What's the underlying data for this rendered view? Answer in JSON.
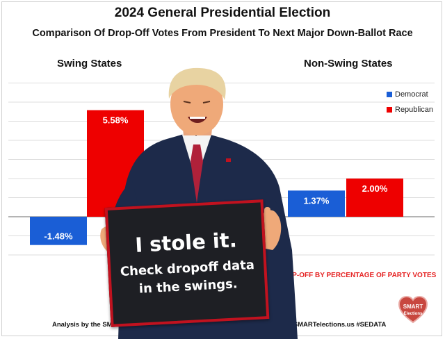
{
  "chart_data": {
    "type": "bar",
    "title": "2024 General Presidential Election",
    "subtitle": "Comparison Of Drop-Off Votes From President To Next Major Down-Ballot Race",
    "categories": [
      "Swing States",
      "Non-Swing States"
    ],
    "series": [
      {
        "name": "Democrat",
        "values": [
          -1.48,
          1.37
        ],
        "labels": [
          "-1.48%",
          "1.37%"
        ]
      },
      {
        "name": "Republican",
        "values": [
          5.58,
          2.0
        ],
        "labels": [
          "5.58%",
          "2.00%"
        ]
      }
    ],
    "ylim": [
      -4,
      7
    ],
    "grid": true,
    "legend": "right",
    "unit": "%",
    "colors": {
      "Democrat": "#1a5ed6",
      "Republican": "#ee0000"
    }
  },
  "annotation": "DROP-OFF BY PERCENTAGE OF PARTY VOTES",
  "footer": {
    "left": "Analysis by the SM",
    "right": "2024 SMARTelections.us  #SEDATA"
  },
  "logo": {
    "line1": "SMART",
    "line2": "Elections"
  },
  "sign": {
    "line1": "I stole it.",
    "line2": "Check dropoff data",
    "line3": "in the swings."
  }
}
